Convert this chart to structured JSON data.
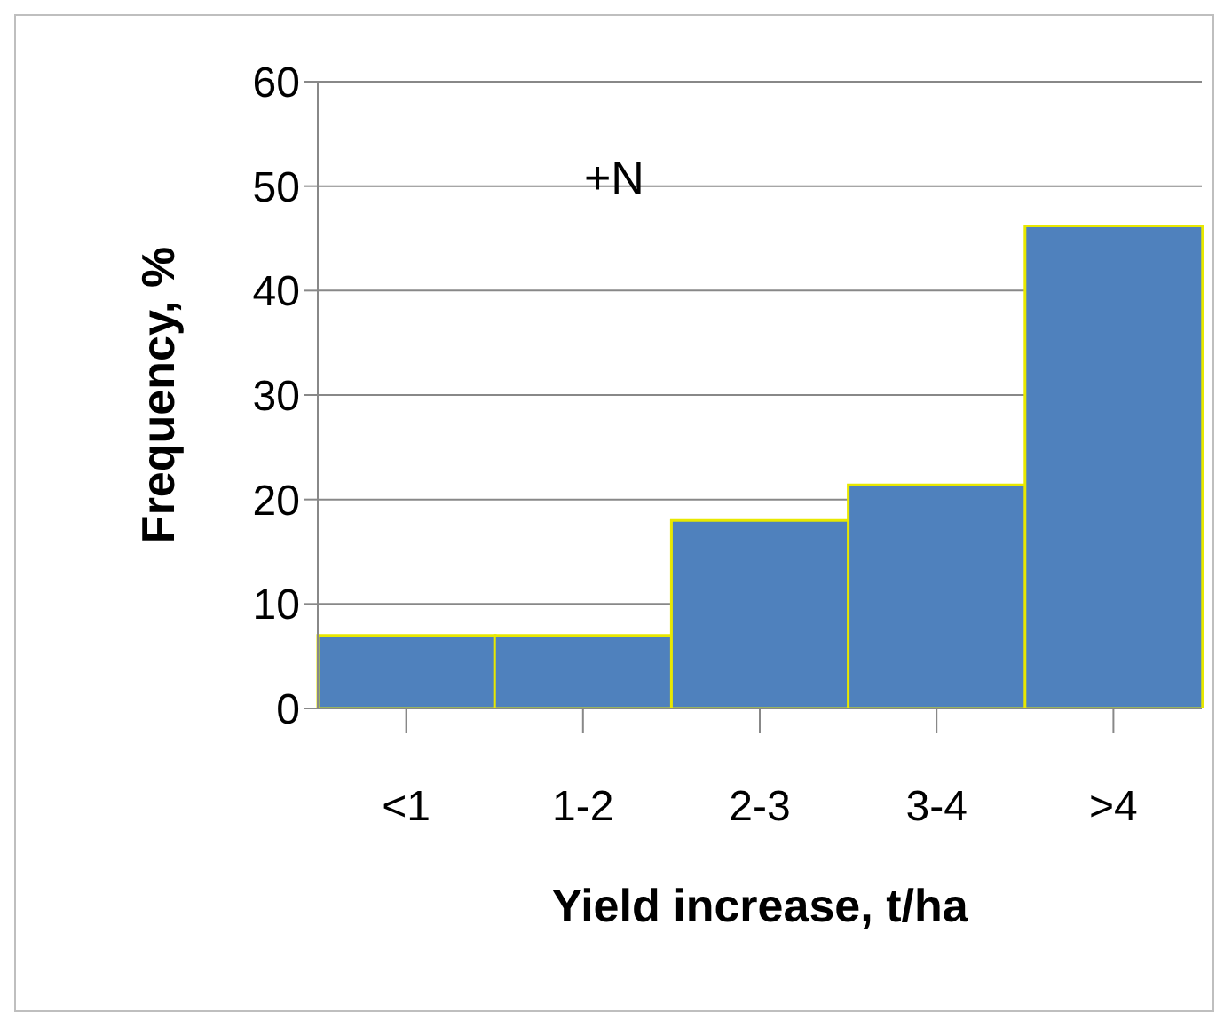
{
  "chart_data": {
    "type": "bar",
    "categories": [
      "<1",
      "1-2",
      "2-3",
      "3-4",
      ">4"
    ],
    "values": [
      7,
      7,
      18,
      21.4,
      46.2
    ],
    "color": "#4f81bd",
    "xlabel": "Yield increase, t/ha",
    "ylabel": "Frequency, %",
    "annotations": [
      "+N"
    ],
    "ylim": [
      0,
      60
    ],
    "yticks": [
      0,
      10,
      20,
      30,
      40,
      50,
      60
    ],
    "grid": "y"
  }
}
